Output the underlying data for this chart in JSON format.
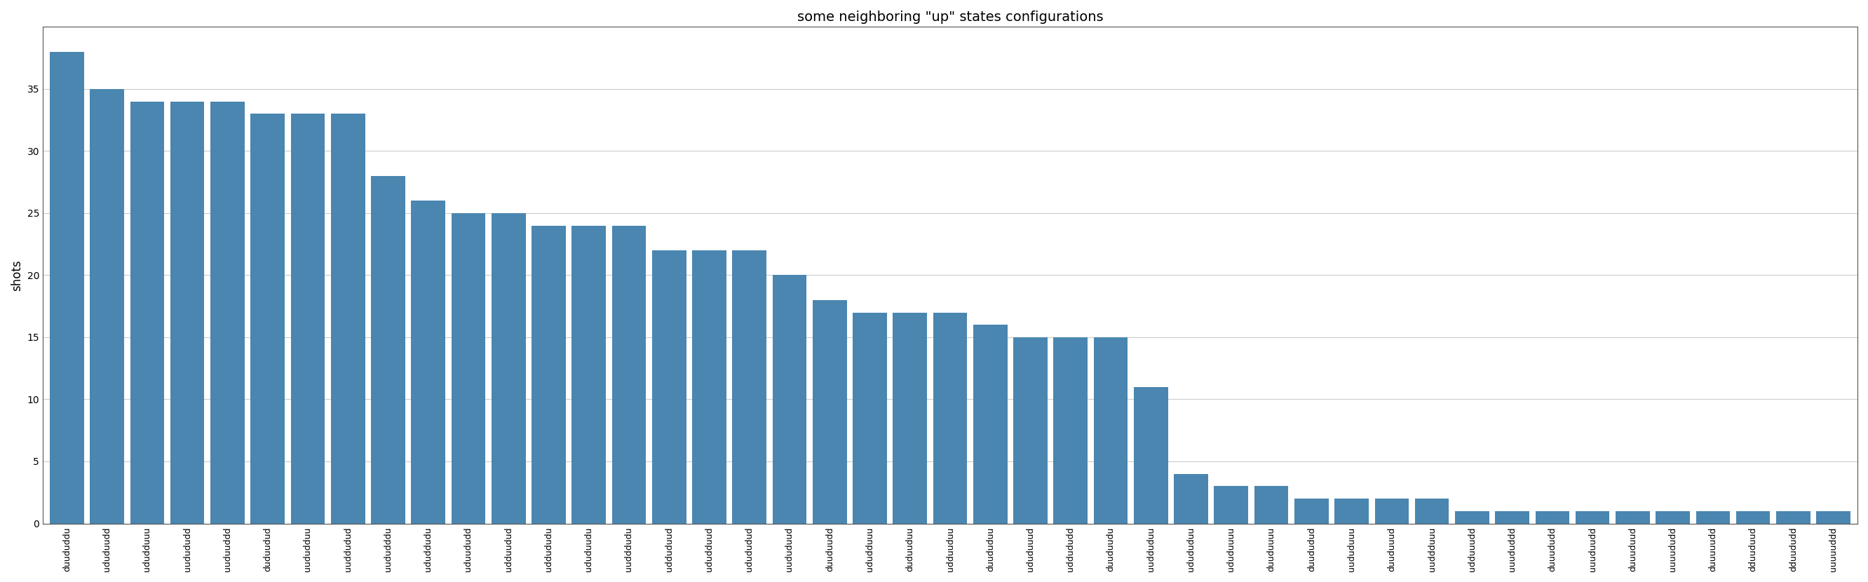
{
  "title": "some neighboring \"up\" states configurations",
  "ylabel": "shots",
  "bar_color": "#4a86b0",
  "categories": [
    "duududdu",
    "ududuudd",
    "ududduuu",
    "uudududd",
    "uuduuddd",
    "duduudud",
    "uududduu",
    "uuddudud",
    "uududddu",
    "ududdudu",
    "uduududd",
    "udduudud",
    "uddududu",
    "ududuudu",
    "uudddudu",
    "udduduud",
    "ududduud",
    "udududud",
    "uududuud",
    "duuduudd",
    "ududduuu",
    "duduuduu",
    "udduuduu",
    "duududuu",
    "ududuuud",
    "uddududd",
    "duuduudu",
    "uudduduu",
    "udududuu",
    "ududuuuu",
    "duuduuuu",
    "duududud",
    "uududuuu",
    "duuduuud",
    "uuddduuu",
    "udduuudd",
    "uuududdd",
    "duuududd",
    "uuuduudd",
    "duuuduud",
    "uuuududd",
    "duuuuudd",
    "dduuduud",
    "dduududd",
    "uuuuuddd"
  ],
  "values": [
    38,
    35,
    34,
    34,
    34,
    33,
    33,
    33,
    28,
    26,
    25,
    25,
    24,
    24,
    24,
    22,
    22,
    22,
    20,
    18,
    17,
    17,
    17,
    16,
    15,
    15,
    15,
    11,
    4,
    3,
    3,
    2,
    2,
    2,
    2,
    1,
    1,
    1,
    1,
    1,
    1,
    1,
    1,
    1,
    1
  ],
  "ylim": [
    0,
    40
  ],
  "yticks": [
    0,
    5,
    10,
    15,
    20,
    25,
    30,
    35
  ],
  "grid_color": "#cccccc",
  "background_color": "#ffffff",
  "title_fontsize": 14,
  "ylabel_fontsize": 12,
  "tick_fontsize": 9,
  "bar_width": 0.85
}
